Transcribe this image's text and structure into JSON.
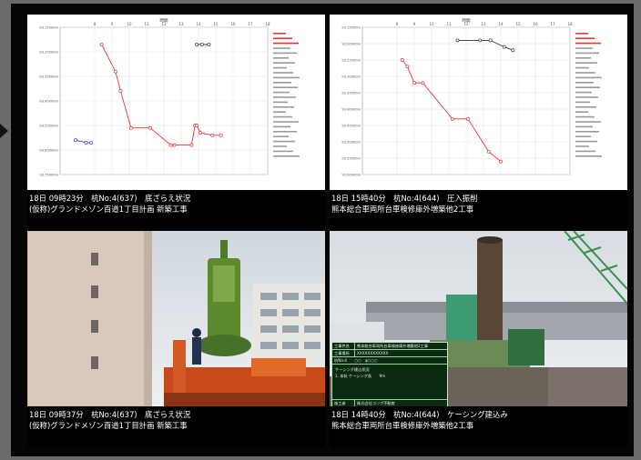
{
  "captions": [
    {
      "line1": "18日 09時23分　杭No:4(637)　底ざらえ状況",
      "line2": "(仮称)グランドメゾン百道1丁目計画 新築工事"
    },
    {
      "line1": "18日 15時40分　杭No:4(644)　圧入振削",
      "line2": "熊本総合車両所台車検修庫外増築他2工事"
    },
    {
      "line1": "18日 09時37分　杭No:4(637)　底ざらえ状況",
      "line2": "(仮称)グランドメゾン百道1丁目計画 新築工事"
    },
    {
      "line1": "18日 14時40分　杭No:4(644)　ケーシング建込み",
      "line2": "熊本総合車両所台車検修庫外増築他2工事"
    }
  ],
  "overlay": {
    "title_key": "工事件名",
    "title_val": "熊本総合車両所台車検修庫外増築他2工事",
    "row2_key": "工事場所",
    "row2_val": "XXXXXXXXXXXX",
    "row3": "杭No:4　　○○　φ○○○",
    "note1": "ケーシング建込状況",
    "note2": "1. 本杭 ケーシング長　　9m",
    "footer_key": "施工者",
    "footer_val": "株式会社コンプ不動産"
  },
  "colors": {
    "accent_line": "#e8332f",
    "blue_line": "#2c3fbf",
    "text": "#ffffff"
  },
  "chart_data": [
    {
      "type": "line",
      "title": "時間",
      "x_ticks": [
        "8",
        "9",
        "10",
        "11",
        "12",
        "13",
        "14",
        "15",
        "16",
        "17",
        "18"
      ],
      "y_ticks": [
        "93.15000m",
        "93.25000m",
        "93.35000m",
        "93.45000m",
        "93.55000m",
        "93.65000m",
        "93.75000m"
      ],
      "series": [
        {
          "color": "#e8332f",
          "values": [
            [
              8.4,
              93.22
            ],
            [
              9.2,
              93.33
            ],
            [
              9.5,
              93.41
            ],
            [
              10.1,
              93.56
            ],
            [
              11.2,
              93.56
            ],
            [
              12.4,
              93.63
            ],
            [
              12.6,
              93.63
            ],
            [
              13.6,
              93.63
            ],
            [
              13.8,
              93.55
            ],
            [
              13.9,
              93.55
            ],
            [
              14.1,
              93.58
            ],
            [
              14.8,
              93.59
            ],
            [
              15.3,
              93.59
            ]
          ]
        },
        {
          "color": "#2c3fbf",
          "values": [
            [
              6.9,
              93.61
            ],
            [
              7.5,
              93.62
            ],
            [
              7.8,
              93.62
            ]
          ]
        },
        {
          "color": "#333333",
          "values": [
            [
              13.9,
              93.22
            ],
            [
              14.2,
              93.22
            ],
            [
              14.6,
              93.22
            ]
          ]
        }
      ]
    },
    {
      "type": "line",
      "title": "時間",
      "x_ticks": [
        "8",
        "9",
        "10",
        "11",
        "12",
        "13",
        "14",
        "15",
        "16",
        "17",
        "18"
      ],
      "y_ticks": [
        "93.15000m",
        "93.20000m",
        "93.25000m",
        "93.30000m",
        "93.35000m",
        "93.40000m",
        "93.45000m",
        "93.50000m",
        "93.55000m",
        "93.60000m"
      ],
      "series": [
        {
          "color": "#e8332f",
          "values": [
            [
              8.3,
              93.25
            ],
            [
              8.6,
              93.27
            ],
            [
              9.0,
              93.32
            ],
            [
              9.5,
              93.32
            ],
            [
              11.2,
              93.43
            ],
            [
              12.1,
              93.43
            ],
            [
              13.3,
              93.53
            ],
            [
              14.0,
              93.56
            ]
          ]
        },
        {
          "color": "#333333",
          "values": [
            [
              11.5,
              93.19
            ],
            [
              12.8,
              93.19
            ],
            [
              13.4,
              93.19
            ],
            [
              14.2,
              93.21
            ],
            [
              14.7,
              93.22
            ]
          ]
        }
      ]
    }
  ]
}
